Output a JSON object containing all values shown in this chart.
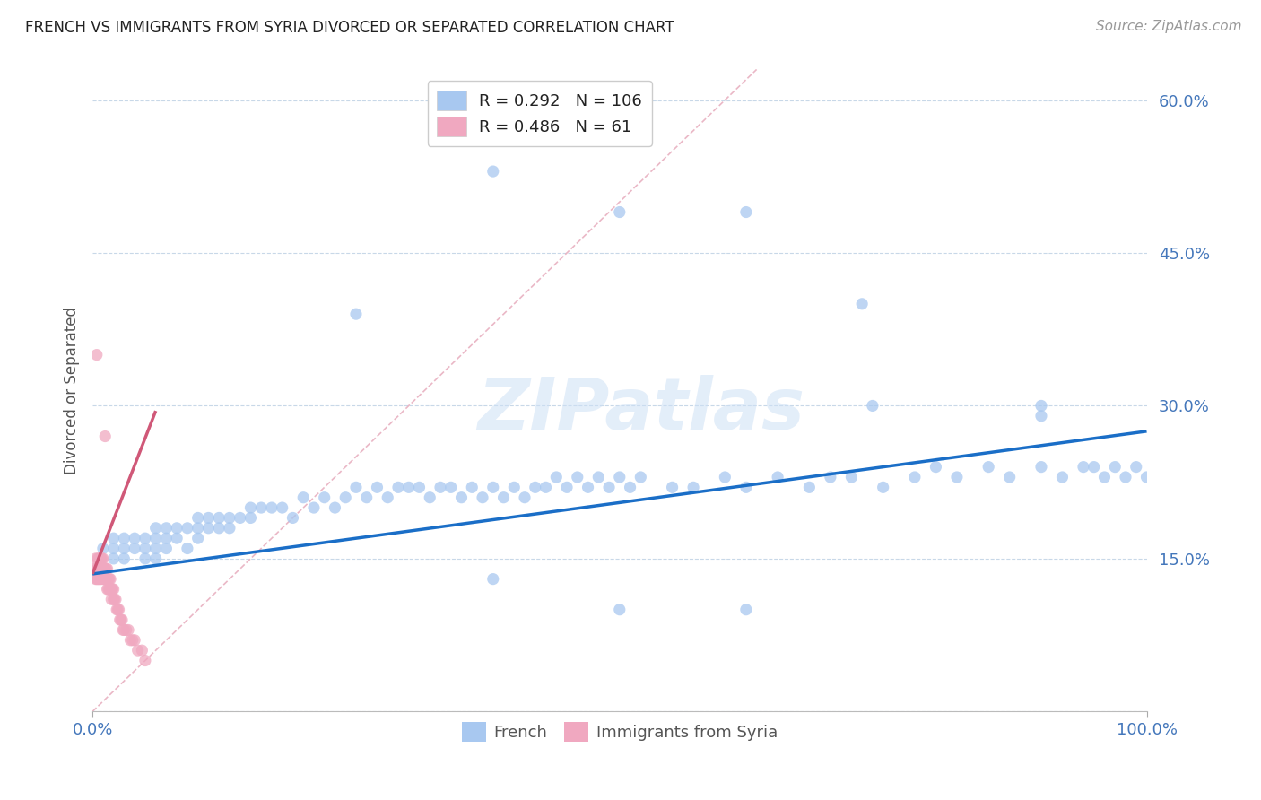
{
  "title": "FRENCH VS IMMIGRANTS FROM SYRIA DIVORCED OR SEPARATED CORRELATION CHART",
  "source": "Source: ZipAtlas.com",
  "ylabel": "Divorced or Separated",
  "xlim": [
    0.0,
    1.0
  ],
  "ylim": [
    0.0,
    0.63
  ],
  "yticks": [
    0.0,
    0.15,
    0.3,
    0.45,
    0.6
  ],
  "ytick_labels": [
    "",
    "15.0%",
    "30.0%",
    "45.0%",
    "60.0%"
  ],
  "xtick_vals": [
    0.0,
    1.0
  ],
  "xtick_labels": [
    "0.0%",
    "100.0%"
  ],
  "french_R": 0.292,
  "french_N": 106,
  "syria_R": 0.486,
  "syria_N": 61,
  "french_color": "#a8c8f0",
  "syria_color": "#f0a8c0",
  "french_line_color": "#1a6ec7",
  "syria_line_color": "#d05878",
  "diag_color": "#e8b0c0",
  "watermark": "ZIPatlas",
  "legend_label_french": "French",
  "legend_label_syria": "Immigrants from Syria",
  "french_x": [
    0.01,
    0.02,
    0.02,
    0.02,
    0.03,
    0.03,
    0.03,
    0.04,
    0.04,
    0.05,
    0.05,
    0.05,
    0.06,
    0.06,
    0.06,
    0.06,
    0.07,
    0.07,
    0.07,
    0.08,
    0.08,
    0.09,
    0.09,
    0.1,
    0.1,
    0.1,
    0.11,
    0.11,
    0.12,
    0.12,
    0.13,
    0.13,
    0.14,
    0.15,
    0.15,
    0.16,
    0.17,
    0.18,
    0.19,
    0.2,
    0.21,
    0.22,
    0.23,
    0.24,
    0.25,
    0.26,
    0.27,
    0.28,
    0.29,
    0.3,
    0.31,
    0.32,
    0.33,
    0.34,
    0.35,
    0.36,
    0.37,
    0.38,
    0.39,
    0.4,
    0.41,
    0.42,
    0.43,
    0.44,
    0.45,
    0.46,
    0.47,
    0.48,
    0.49,
    0.5,
    0.51,
    0.52,
    0.55,
    0.57,
    0.6,
    0.62,
    0.65,
    0.68,
    0.7,
    0.72,
    0.75,
    0.78,
    0.8,
    0.82,
    0.85,
    0.87,
    0.9,
    0.92,
    0.94,
    0.95,
    0.96,
    0.97,
    0.98,
    0.99,
    1.0,
    0.38,
    0.38,
    0.5,
    0.5,
    0.62,
    0.62,
    0.25,
    0.73,
    0.74,
    0.9,
    0.9
  ],
  "french_y": [
    0.16,
    0.17,
    0.15,
    0.16,
    0.16,
    0.17,
    0.15,
    0.16,
    0.17,
    0.17,
    0.16,
    0.15,
    0.17,
    0.16,
    0.18,
    0.15,
    0.17,
    0.16,
    0.18,
    0.18,
    0.17,
    0.18,
    0.16,
    0.18,
    0.17,
    0.19,
    0.19,
    0.18,
    0.19,
    0.18,
    0.19,
    0.18,
    0.19,
    0.2,
    0.19,
    0.2,
    0.2,
    0.2,
    0.19,
    0.21,
    0.2,
    0.21,
    0.2,
    0.21,
    0.22,
    0.21,
    0.22,
    0.21,
    0.22,
    0.22,
    0.22,
    0.21,
    0.22,
    0.22,
    0.21,
    0.22,
    0.21,
    0.22,
    0.21,
    0.22,
    0.21,
    0.22,
    0.22,
    0.23,
    0.22,
    0.23,
    0.22,
    0.23,
    0.22,
    0.23,
    0.22,
    0.23,
    0.22,
    0.22,
    0.23,
    0.22,
    0.23,
    0.22,
    0.23,
    0.23,
    0.22,
    0.23,
    0.24,
    0.23,
    0.24,
    0.23,
    0.24,
    0.23,
    0.24,
    0.24,
    0.23,
    0.24,
    0.23,
    0.24,
    0.23,
    0.53,
    0.13,
    0.49,
    0.1,
    0.49,
    0.1,
    0.39,
    0.4,
    0.3,
    0.3,
    0.29
  ],
  "syria_x": [
    0.002,
    0.003,
    0.003,
    0.004,
    0.004,
    0.005,
    0.005,
    0.005,
    0.006,
    0.006,
    0.006,
    0.007,
    0.007,
    0.007,
    0.008,
    0.008,
    0.008,
    0.009,
    0.009,
    0.01,
    0.01,
    0.01,
    0.011,
    0.011,
    0.012,
    0.012,
    0.013,
    0.013,
    0.014,
    0.014,
    0.015,
    0.015,
    0.016,
    0.016,
    0.017,
    0.017,
    0.018,
    0.018,
    0.019,
    0.02,
    0.02,
    0.021,
    0.022,
    0.023,
    0.024,
    0.025,
    0.026,
    0.027,
    0.028,
    0.029,
    0.03,
    0.032,
    0.034,
    0.036,
    0.038,
    0.04,
    0.043,
    0.047,
    0.05,
    0.004,
    0.012
  ],
  "syria_y": [
    0.14,
    0.13,
    0.15,
    0.14,
    0.13,
    0.14,
    0.15,
    0.13,
    0.14,
    0.15,
    0.13,
    0.14,
    0.15,
    0.13,
    0.14,
    0.15,
    0.13,
    0.14,
    0.15,
    0.14,
    0.15,
    0.13,
    0.14,
    0.13,
    0.14,
    0.13,
    0.14,
    0.13,
    0.14,
    0.12,
    0.13,
    0.12,
    0.13,
    0.12,
    0.13,
    0.12,
    0.12,
    0.11,
    0.12,
    0.11,
    0.12,
    0.11,
    0.11,
    0.1,
    0.1,
    0.1,
    0.09,
    0.09,
    0.09,
    0.08,
    0.08,
    0.08,
    0.08,
    0.07,
    0.07,
    0.07,
    0.06,
    0.06,
    0.05,
    0.35,
    0.27
  ],
  "french_line_x": [
    0.0,
    1.0
  ],
  "french_line_y": [
    0.135,
    0.275
  ],
  "syria_line_x": [
    0.0,
    0.06
  ],
  "syria_line_y": [
    0.135,
    0.295
  ],
  "diag_line_x": [
    0.0,
    0.63
  ],
  "diag_line_y": [
    0.0,
    0.63
  ]
}
